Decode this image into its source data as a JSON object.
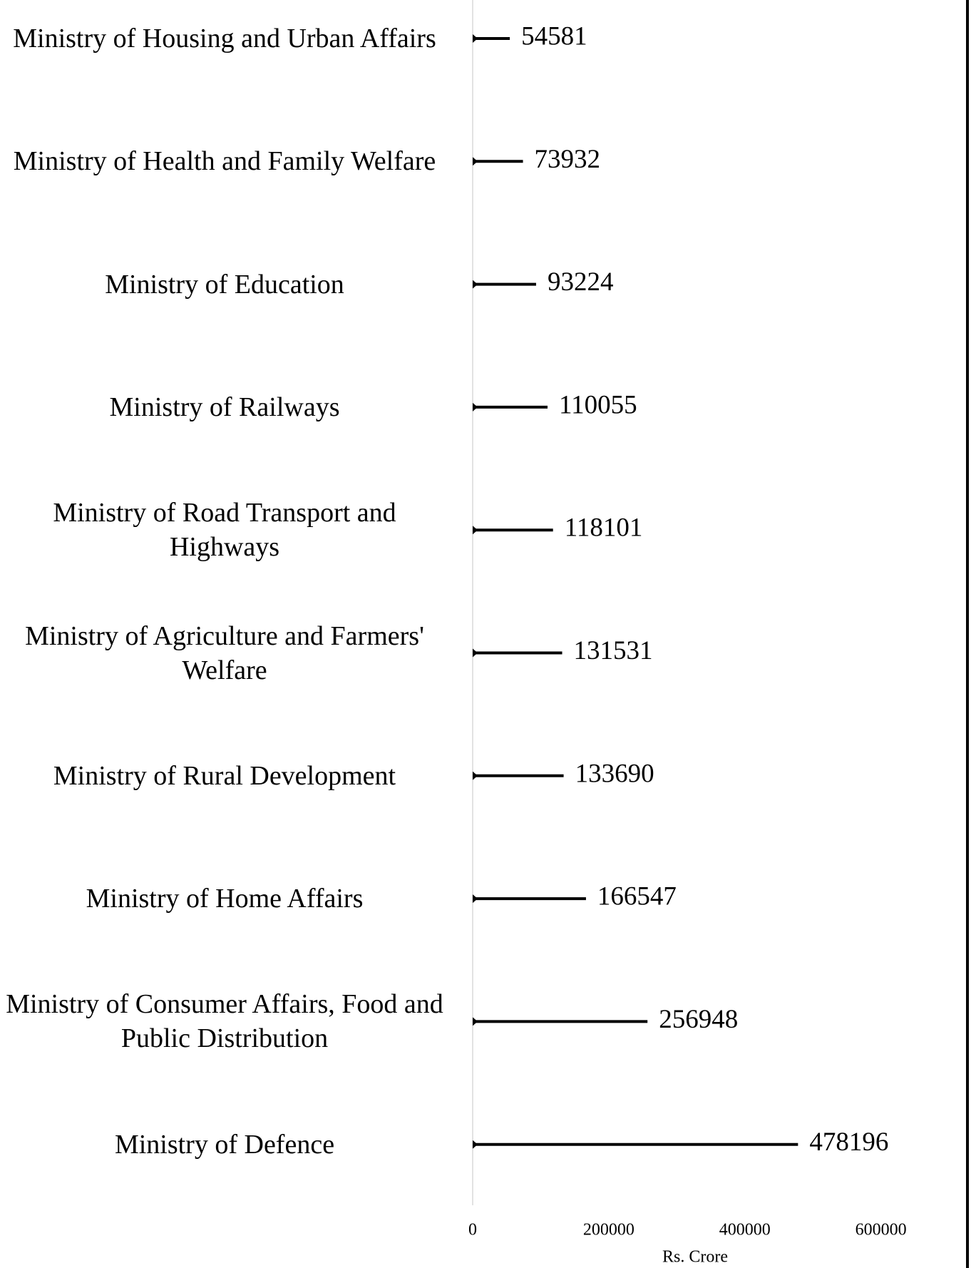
{
  "chart_data": {
    "type": "bar",
    "orientation": "horizontal",
    "x_label": "Rs. Crore",
    "categories": [
      "Ministry of Housing and Urban Affairs",
      "Ministry of Health and Family Welfare",
      "Ministry of Education",
      "Ministry of Railways",
      "Ministry of Road Transport and Highways",
      "Ministry of Agriculture and Farmers' Welfare",
      "Ministry of Rural Development",
      "Ministry of Home Affairs",
      "Ministry of Consumer Affairs, Food and Public Distribution",
      "Ministry of Defence"
    ],
    "values": [
      54581,
      73932,
      93224,
      110055,
      118101,
      131531,
      133690,
      166547,
      256948,
      478196
    ],
    "color": "#000000",
    "xlim": [
      0,
      700000
    ],
    "xticks": [
      0,
      200000,
      400000,
      600000
    ],
    "grid": false
  }
}
